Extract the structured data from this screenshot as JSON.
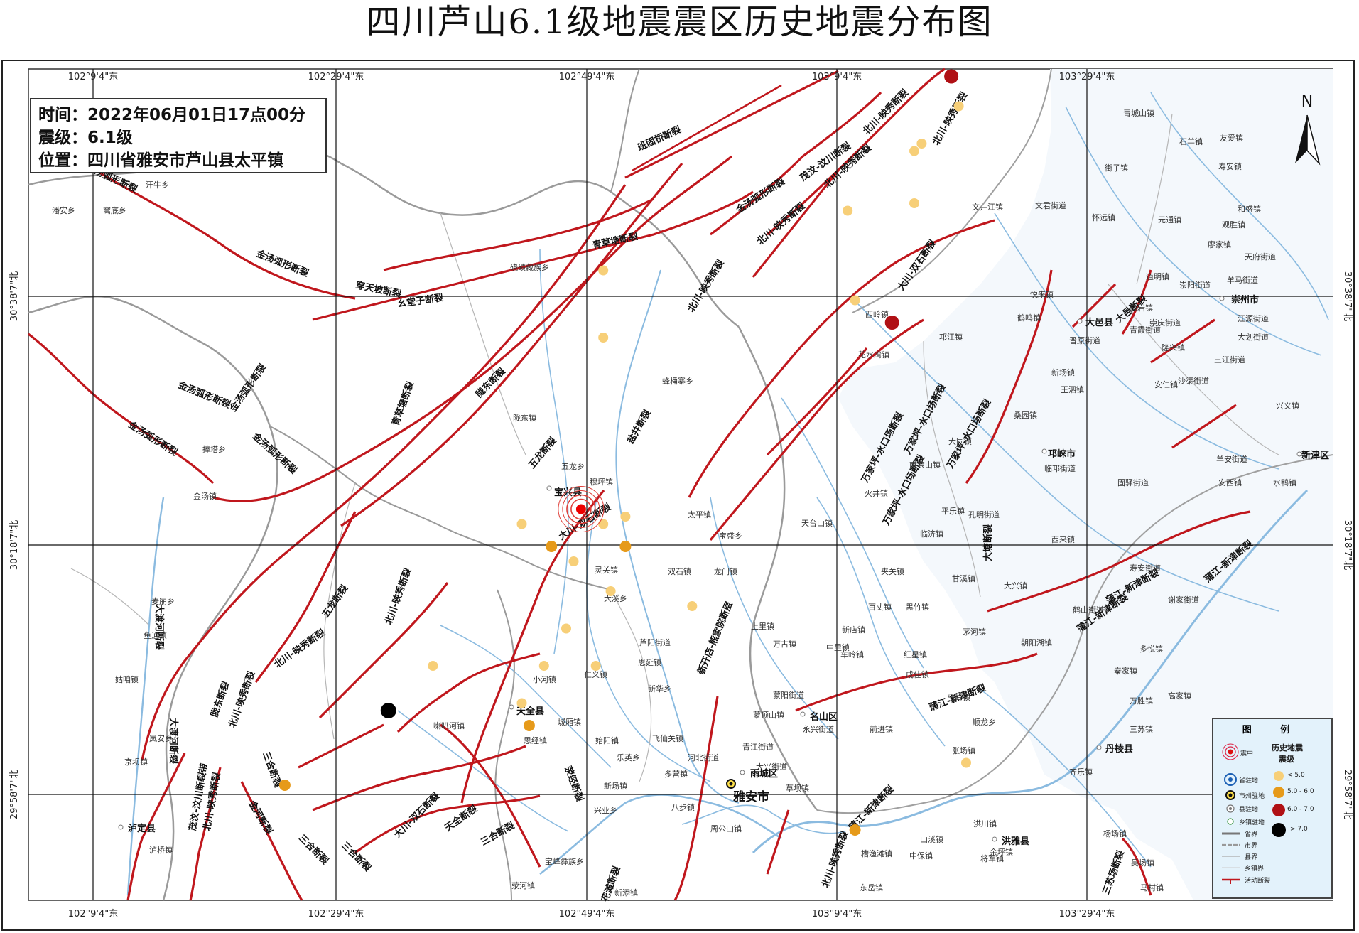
{
  "title": "四川芦山6.1级地震震区历史地震分布图",
  "info": {
    "time": "时间：2022年06月01日17点00分",
    "magnitude": "震级：6.1级",
    "location": "位置：四川省雅安市芦山县太平镇"
  },
  "coords": {
    "lon_top": [
      "102°9'4\"东",
      "102°29'4\"东",
      "102°49'4\"东",
      "103°9'4\"东",
      "103°29'4\"东"
    ],
    "lon_bottom": [
      "102°9'4\"东",
      "102°29'4\"东",
      "102°49'4\"东",
      "103°9'4\"东",
      "103°29'4\"东"
    ],
    "lat": [
      "30°38'7\"北",
      "30°18'7\"北",
      "29°58'7\"北"
    ]
  },
  "colors": {
    "fault": "#c0171d",
    "river": "#7fb3d8",
    "boundary": "#999999",
    "eq_lt5": "#f7cf78",
    "eq_5_6": "#e69a1a",
    "eq_6_7": "#b01015",
    "eq_gt7": "#000000",
    "legend_bg": "#e3f2fb"
  },
  "north_label": "N",
  "places": {
    "cities": [
      "崇州市",
      "邛崃市",
      "新津区",
      "大邑县",
      "宝兴县",
      "天全县",
      "名山区",
      "丹棱县",
      "洪雅县",
      "雨城区",
      "雅安市",
      "泸定县"
    ],
    "towns": [
      "汗牛乡",
      "潘安乡",
      "窝底乡",
      "硗碛藏族乡",
      "蜂桶寨乡",
      "陇东镇",
      "五龙乡",
      "穆坪镇",
      "捧塔乡",
      "金汤镇",
      "太平镇",
      "宝盛乡",
      "灵关镇",
      "双石镇",
      "龙门镇",
      "大溪乡",
      "芦阳街道",
      "思延镇",
      "仁义镇",
      "新华乡",
      "小河镇",
      "喇叭河镇",
      "城厢镇",
      "思经镇",
      "始阳镇",
      "飞仙关镇",
      "多营镇",
      "河北街道",
      "青江街道",
      "大兴街道",
      "兴业乡",
      "乐英乡",
      "新场镇",
      "八步镇",
      "周公山镇",
      "草坝镇",
      "中里镇",
      "上里镇",
      "万古镇",
      "蒙阳街道",
      "蒙顶山镇",
      "永兴街道",
      "前进镇",
      "车岭镇",
      "新店镇",
      "百丈镇",
      "黑竹镇",
      "红星镇",
      "茅河镇",
      "成佳镇",
      "马岭镇",
      "顺龙乡",
      "张场镇",
      "甘溪镇",
      "大兴镇",
      "朝阳湖镇",
      "鹤山街道",
      "寿安街道",
      "谢家街道",
      "多悦镇",
      "秦家镇",
      "高家镇",
      "万胜镇",
      "三苏镇",
      "齐乐镇",
      "杨场镇",
      "吴场镇",
      "马村镇",
      "余坪镇",
      "将军镇",
      "中保镇",
      "山溪镇",
      "洪川镇",
      "槽渔滩镇",
      "东岳镇",
      "新添镇",
      "宝峰彝族乡",
      "荥河镇",
      "泸桥镇",
      "京坝镇",
      "岚安乡",
      "姑咱镇",
      "鱼通镇",
      "麦崩乡",
      "天台山镇",
      "南宝山镇",
      "火井镇",
      "孔明街道",
      "平乐镇",
      "临济镇",
      "夹关镇",
      "西来镇",
      "文君街道",
      "临邛街道",
      "固驿街道",
      "桑园镇",
      "新场镇",
      "王泗镇",
      "安仁镇",
      "沙渠街道",
      "三江街道",
      "大划街道",
      "江源街道",
      "崇阳街道",
      "羊马街道",
      "天府街道",
      "廖家镇",
      "观胜镇",
      "元通镇",
      "和盛镇",
      "怀远镇",
      "街子镇",
      "寿安镇",
      "友爱镇",
      "石羊镇",
      "青城山镇",
      "文井江镇",
      "西岭镇",
      "花水湾镇",
      "鹤鸣镇",
      "悦来镇",
      "晋原街道",
      "邛江镇",
      "青霞街道",
      "白岩镇",
      "崇庆街道",
      "隆兴镇",
      "道明镇",
      "兴义镇",
      "水鸭镇",
      "安西镇",
      "羊安街道",
      "大同镇",
      "孔明",
      "仁寿"
    ],
    "faults": [
      "金汤弧形断裂",
      "穿天坡断裂",
      "幺堂子断裂",
      "青草塘断裂",
      "班固桥断裂",
      "北川-映秀断裂",
      "茂汶-汶川断裂",
      "大川-双石断裂",
      "陇东断裂",
      "五龙断裂",
      "盐井断裂",
      "三合断裂",
      "天全断裂",
      "荥经断裂",
      "大渡河断裂",
      "万家坪-水口场断裂",
      "大塘断裂",
      "蒲江-新津断裂",
      "新开店-熊家院断层",
      "大邑断裂",
      "三苏场断裂",
      "花滩断裂",
      "金河断裂",
      "茂汶-汶川断裂带"
    ]
  },
  "legend": {
    "title": "图 例",
    "epicenter": "震中",
    "history_title": "历史地震",
    "mag_title": "震级",
    "provincial": "省驻地",
    "prefecture": "市州驻地",
    "county": "县驻地",
    "township": "乡镇驻地",
    "lt5": "< 5.0",
    "m5_6": "5.0 - 6.0",
    "m6_7": "6.0 - 7.0",
    "gt7": "> 7.0",
    "province_border": "省界",
    "city_border": "市界",
    "county_border": "县界",
    "town_border": "乡镇界",
    "active_fault": "活动断裂"
  },
  "earthquakes": [
    {
      "mag": "lt5",
      "lon": 102.73,
      "lat": 30.33
    },
    {
      "mag": "lt5",
      "lon": 102.84,
      "lat": 30.33
    },
    {
      "mag": "lt5",
      "lon": 102.87,
      "lat": 30.34
    },
    {
      "mag": "lt5",
      "lon": 102.8,
      "lat": 30.28
    },
    {
      "mag": "lt5",
      "lon": 102.85,
      "lat": 30.24
    },
    {
      "mag": "lt5",
      "lon": 102.79,
      "lat": 30.19
    },
    {
      "mag": "lt5",
      "lon": 102.96,
      "lat": 30.22
    },
    {
      "mag": "lt5",
      "lon": 102.61,
      "lat": 30.14
    },
    {
      "mag": "lt5",
      "lon": 102.76,
      "lat": 30.14
    },
    {
      "mag": "lt5",
      "lon": 102.83,
      "lat": 30.14
    },
    {
      "mag": "lt5",
      "lon": 102.73,
      "lat": 30.09
    },
    {
      "mag": "lt5",
      "lon": 102.84,
      "lat": 30.58
    },
    {
      "mag": "lt5",
      "lon": 102.84,
      "lat": 30.67
    },
    {
      "mag": "lt5",
      "lon": 103.18,
      "lat": 30.63
    },
    {
      "mag": "lt5",
      "lon": 103.17,
      "lat": 30.75
    },
    {
      "mag": "lt5",
      "lon": 103.26,
      "lat": 30.76
    },
    {
      "mag": "lt5",
      "lon": 103.26,
      "lat": 30.83
    },
    {
      "mag": "lt5",
      "lon": 103.27,
      "lat": 30.84
    },
    {
      "mag": "lt5",
      "lon": 103.32,
      "lat": 30.89
    },
    {
      "mag": "lt5",
      "lon": 103.33,
      "lat": 30.01
    },
    {
      "mag": "m5_6",
      "lon": 102.77,
      "lat": 30.3
    },
    {
      "mag": "m5_6",
      "lon": 102.87,
      "lat": 30.3
    },
    {
      "mag": "m5_6",
      "lon": 102.74,
      "lat": 30.06
    },
    {
      "mag": "m5_6",
      "lon": 102.41,
      "lat": 29.98
    },
    {
      "mag": "m5_6",
      "lon": 103.18,
      "lat": 29.92
    },
    {
      "mag": "m6_7",
      "lon": 103.23,
      "lat": 30.6
    },
    {
      "mag": "m6_7",
      "lon": 103.31,
      "lat": 30.93
    },
    {
      "mag": "gt7",
      "lon": 102.55,
      "lat": 30.08
    }
  ],
  "epicenter": {
    "lon": 102.81,
    "lat": 30.35
  }
}
